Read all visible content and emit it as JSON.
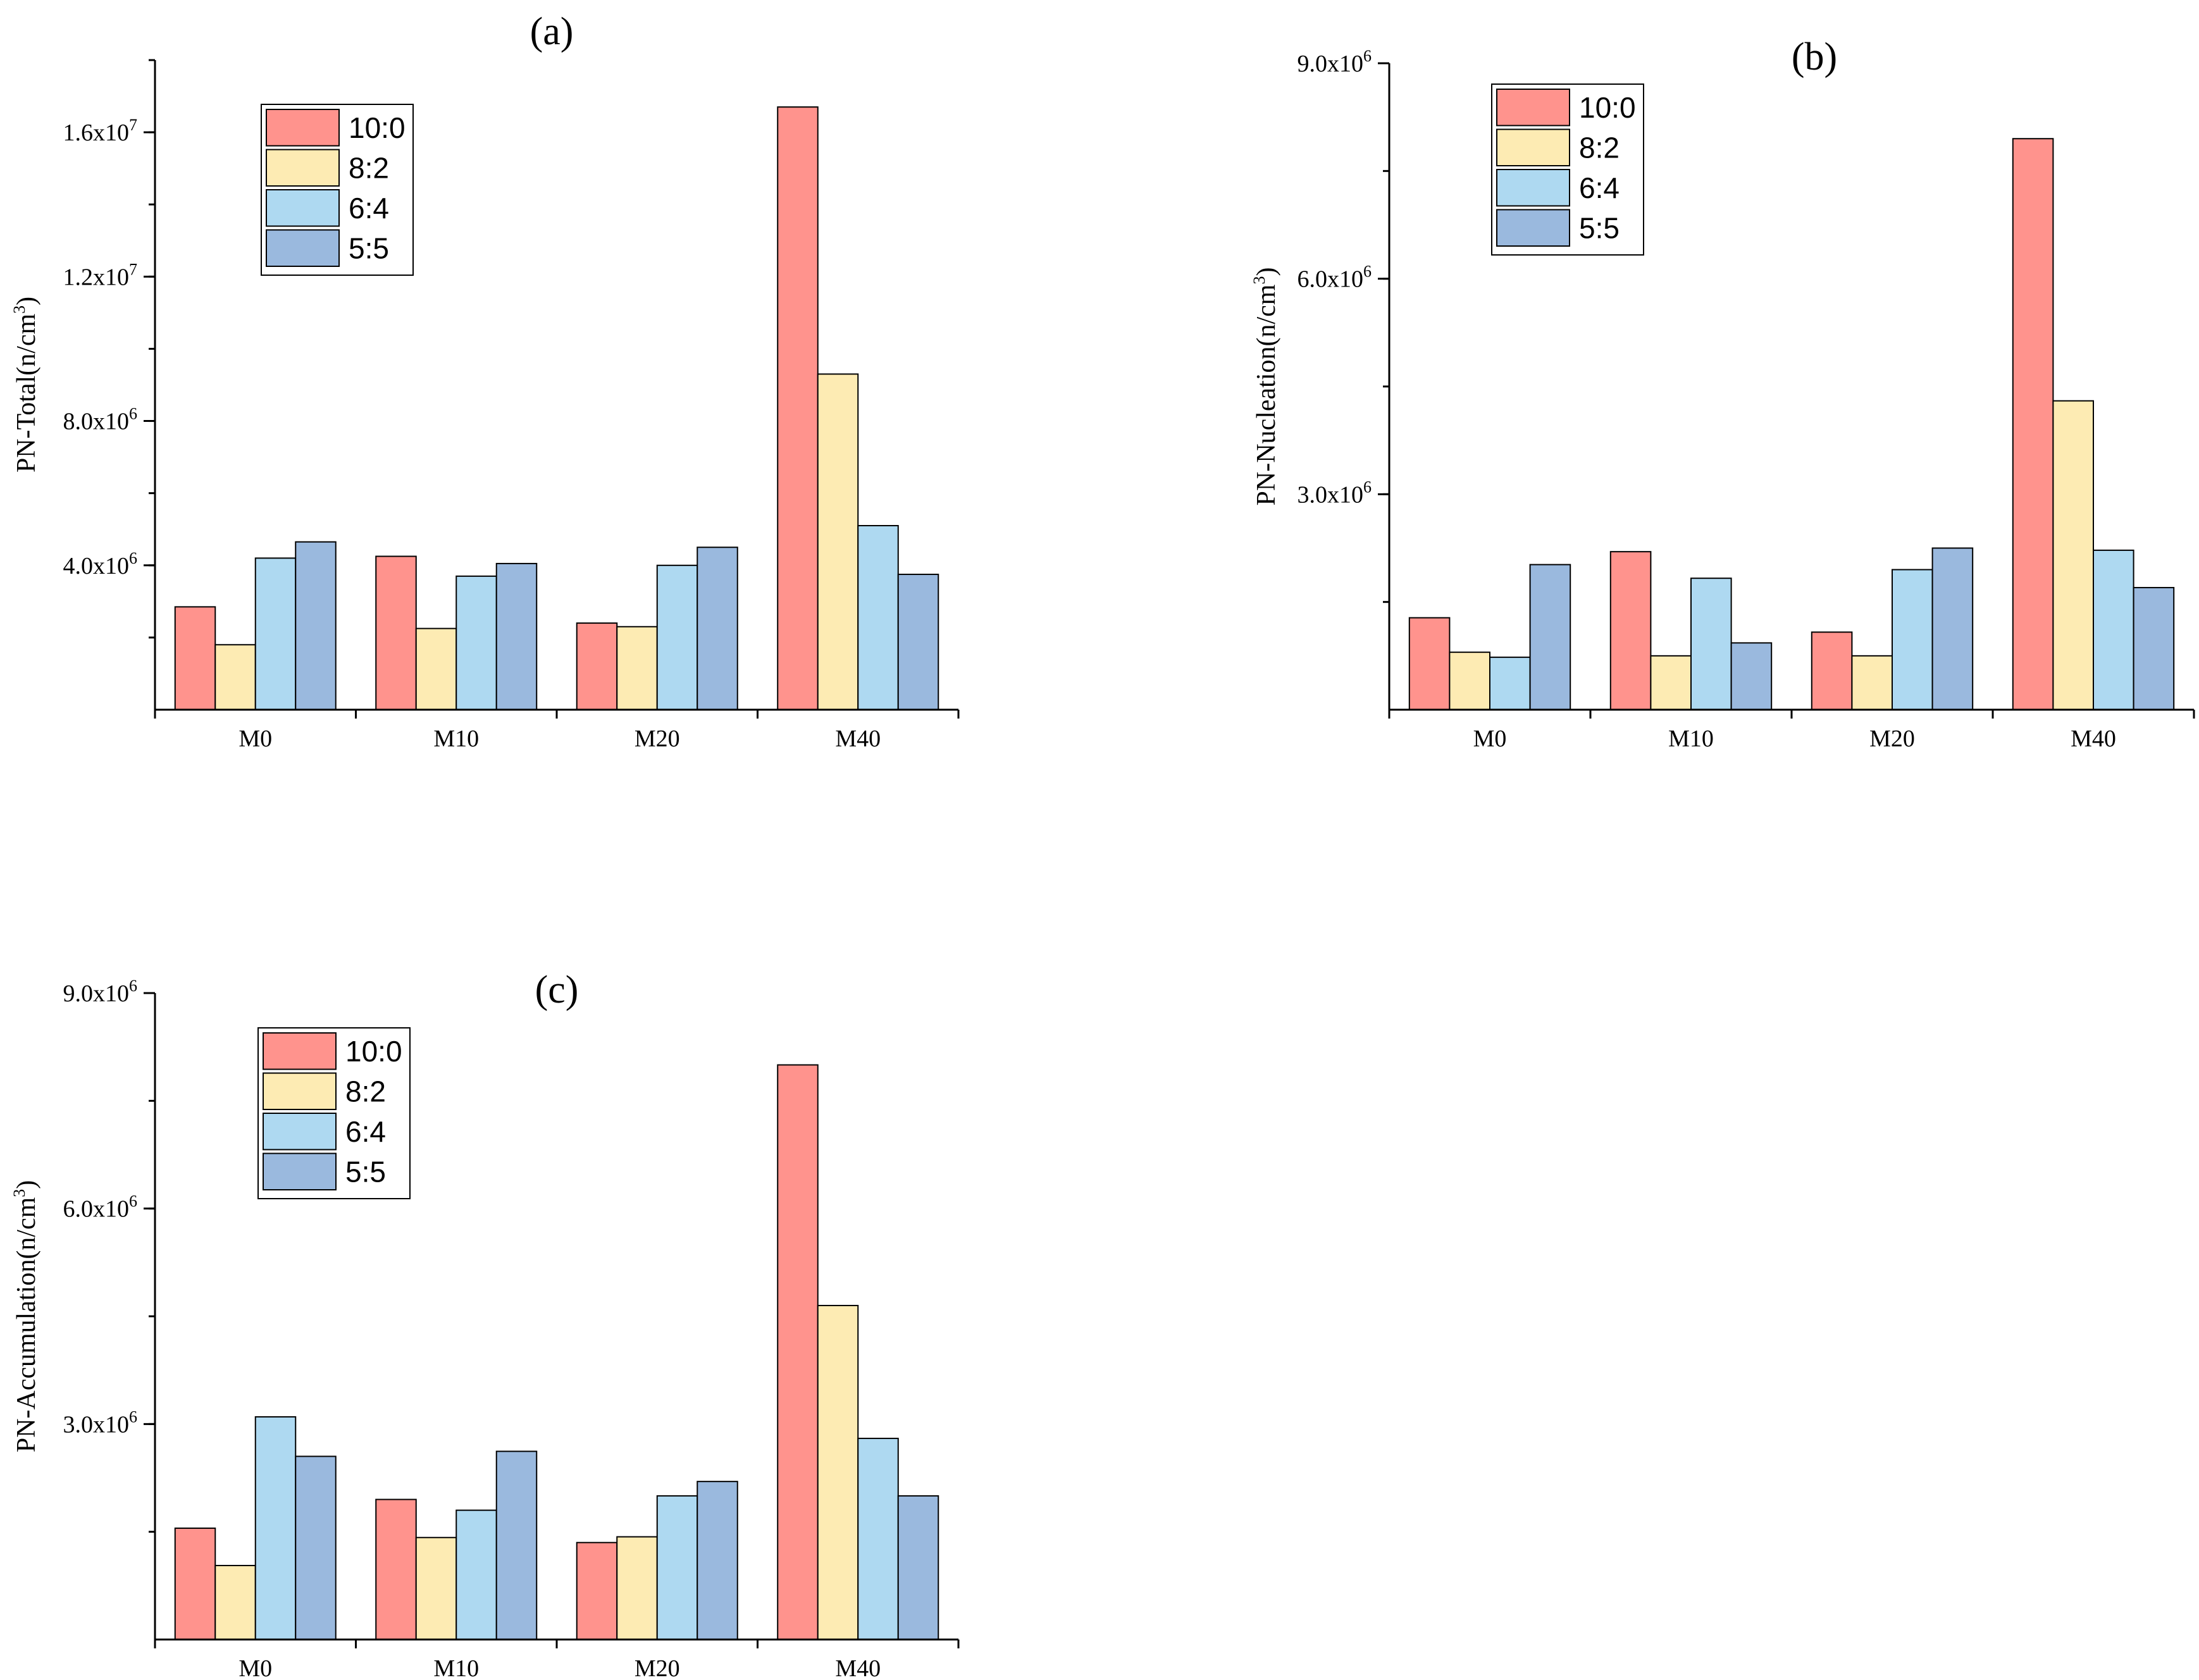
{
  "figure": {
    "series_names": [
      "10:0",
      "8:2",
      "6:4",
      "5:5"
    ],
    "series_colors": [
      "#ff938d",
      "#fdebb3",
      "#aed9f1",
      "#9ab9de"
    ]
  },
  "chart_data": [
    {
      "type": "bar",
      "panel": "(a)",
      "title": "",
      "xlabel": "",
      "ylabel": "PN-Total(n/cm",
      "ylabel_sup": "3",
      "ylabel_suffix": ")",
      "ylim": [
        0,
        18000000
      ],
      "yticks": [
        {
          "value": 4000000,
          "base": "4.0x10",
          "exp": "6"
        },
        {
          "value": 8000000,
          "base": "8.0x10",
          "exp": "6"
        },
        {
          "value": 12000000,
          "base": "1.2x10",
          "exp": "7"
        },
        {
          "value": 16000000,
          "base": "1.6x10",
          "exp": "7"
        }
      ],
      "minor_step": 2000000,
      "categories": [
        "M0",
        "M10",
        "M20",
        "M40"
      ],
      "series": [
        {
          "name": "10:0",
          "values": [
            2850000,
            4250000,
            2400000,
            16700000
          ]
        },
        {
          "name": "8:2",
          "values": [
            1800000,
            2250000,
            2300000,
            9300000
          ]
        },
        {
          "name": "6:4",
          "values": [
            4200000,
            3700000,
            4000000,
            5100000
          ]
        },
        {
          "name": "5:5",
          "values": [
            4650000,
            4050000,
            4500000,
            3750000
          ]
        }
      ]
    },
    {
      "type": "bar",
      "panel": "(b)",
      "title": "",
      "xlabel": "",
      "ylabel": "PN-Nucleation(n/cm",
      "ylabel_sup": "3",
      "ylabel_suffix": ")",
      "ylim": [
        0,
        9000000
      ],
      "yticks": [
        {
          "value": 3000000,
          "base": "3.0x10",
          "exp": "6"
        },
        {
          "value": 6000000,
          "base": "6.0x10",
          "exp": "6"
        },
        {
          "value": 9000000,
          "base": "9.0x10",
          "exp": "6"
        }
      ],
      "minor_step": 1500000,
      "categories": [
        "M0",
        "M10",
        "M20",
        "M40"
      ],
      "series": [
        {
          "name": "10:0",
          "values": [
            1280000,
            2200000,
            1080000,
            7950000
          ]
        },
        {
          "name": "8:2",
          "values": [
            800000,
            750000,
            750000,
            4300000
          ]
        },
        {
          "name": "6:4",
          "values": [
            730000,
            1830000,
            1950000,
            2220000
          ]
        },
        {
          "name": "5:5",
          "values": [
            2020000,
            930000,
            2250000,
            1700000
          ]
        }
      ]
    },
    {
      "type": "bar",
      "panel": "(c)",
      "title": "",
      "xlabel": "",
      "ylabel": "PN-Accumulation(n/cm",
      "ylabel_sup": "3",
      "ylabel_suffix": ")",
      "ylim": [
        0,
        9000000
      ],
      "yticks": [
        {
          "value": 3000000,
          "base": "3.0x10",
          "exp": "6"
        },
        {
          "value": 6000000,
          "base": "6.0x10",
          "exp": "6"
        },
        {
          "value": 9000000,
          "base": "9.0x10",
          "exp": "6"
        }
      ],
      "minor_step": 1500000,
      "categories": [
        "M0",
        "M10",
        "M20",
        "M40"
      ],
      "series": [
        {
          "name": "10:0",
          "values": [
            1550000,
            1950000,
            1350000,
            8000000
          ]
        },
        {
          "name": "8:2",
          "values": [
            1030000,
            1420000,
            1430000,
            4650000
          ]
        },
        {
          "name": "6:4",
          "values": [
            3100000,
            1800000,
            2000000,
            2800000
          ]
        },
        {
          "name": "5:5",
          "values": [
            2550000,
            2620000,
            2200000,
            2000000
          ]
        }
      ]
    }
  ]
}
